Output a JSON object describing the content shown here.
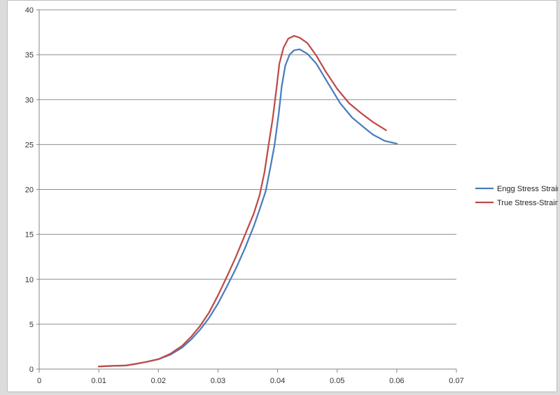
{
  "chart_data": {
    "type": "line",
    "title": "",
    "xlabel": "",
    "ylabel": "",
    "xlim": [
      0,
      0.07
    ],
    "ylim": [
      0,
      40
    ],
    "x_ticks": [
      "0",
      "0.01",
      "0.02",
      "0.03",
      "0.04",
      "0.05",
      "0.06",
      "0.07"
    ],
    "y_ticks": [
      "0",
      "5",
      "10",
      "15",
      "20",
      "25",
      "30",
      "35",
      "40"
    ],
    "grid": "horizontal",
    "legend_position": "right",
    "series": [
      {
        "name": "Engg Stress Strain",
        "color": "#4a7ebb",
        "points": [
          [
            0.01,
            0.3
          ],
          [
            0.012,
            0.35
          ],
          [
            0.0145,
            0.4
          ],
          [
            0.016,
            0.55
          ],
          [
            0.018,
            0.8
          ],
          [
            0.02,
            1.1
          ],
          [
            0.022,
            1.6
          ],
          [
            0.024,
            2.4
          ],
          [
            0.0255,
            3.3
          ],
          [
            0.027,
            4.4
          ],
          [
            0.0285,
            5.7
          ],
          [
            0.03,
            7.3
          ],
          [
            0.0315,
            9.2
          ],
          [
            0.033,
            11.2
          ],
          [
            0.0345,
            13.4
          ],
          [
            0.036,
            15.9
          ],
          [
            0.037,
            17.8
          ],
          [
            0.038,
            19.8
          ],
          [
            0.0388,
            22.5
          ],
          [
            0.0395,
            25.0
          ],
          [
            0.0402,
            28.5
          ],
          [
            0.0407,
            31.5
          ],
          [
            0.0413,
            33.8
          ],
          [
            0.042,
            35.0
          ],
          [
            0.0428,
            35.5
          ],
          [
            0.0437,
            35.6
          ],
          [
            0.045,
            35.1
          ],
          [
            0.0465,
            34.0
          ],
          [
            0.0485,
            31.8
          ],
          [
            0.0505,
            29.6
          ],
          [
            0.0525,
            28.0
          ],
          [
            0.0545,
            26.9
          ],
          [
            0.056,
            26.1
          ],
          [
            0.058,
            25.4
          ],
          [
            0.06,
            25.1
          ]
        ]
      },
      {
        "name": "True Stress-Strain",
        "color": "#be4b48",
        "points": [
          [
            0.01,
            0.3
          ],
          [
            0.012,
            0.35
          ],
          [
            0.0145,
            0.4
          ],
          [
            0.016,
            0.55
          ],
          [
            0.018,
            0.8
          ],
          [
            0.02,
            1.1
          ],
          [
            0.022,
            1.7
          ],
          [
            0.024,
            2.6
          ],
          [
            0.0255,
            3.6
          ],
          [
            0.027,
            4.8
          ],
          [
            0.0285,
            6.3
          ],
          [
            0.03,
            8.2
          ],
          [
            0.0315,
            10.3
          ],
          [
            0.033,
            12.5
          ],
          [
            0.0345,
            14.9
          ],
          [
            0.036,
            17.3
          ],
          [
            0.037,
            19.4
          ],
          [
            0.0378,
            21.9
          ],
          [
            0.0385,
            25.0
          ],
          [
            0.0392,
            28.0
          ],
          [
            0.0398,
            31.2
          ],
          [
            0.0403,
            34.0
          ],
          [
            0.041,
            35.8
          ],
          [
            0.0418,
            36.8
          ],
          [
            0.0428,
            37.1
          ],
          [
            0.0437,
            36.9
          ],
          [
            0.045,
            36.3
          ],
          [
            0.0465,
            34.9
          ],
          [
            0.048,
            33.2
          ],
          [
            0.05,
            31.2
          ],
          [
            0.052,
            29.6
          ],
          [
            0.054,
            28.5
          ],
          [
            0.056,
            27.5
          ],
          [
            0.0582,
            26.6
          ]
        ]
      }
    ]
  }
}
